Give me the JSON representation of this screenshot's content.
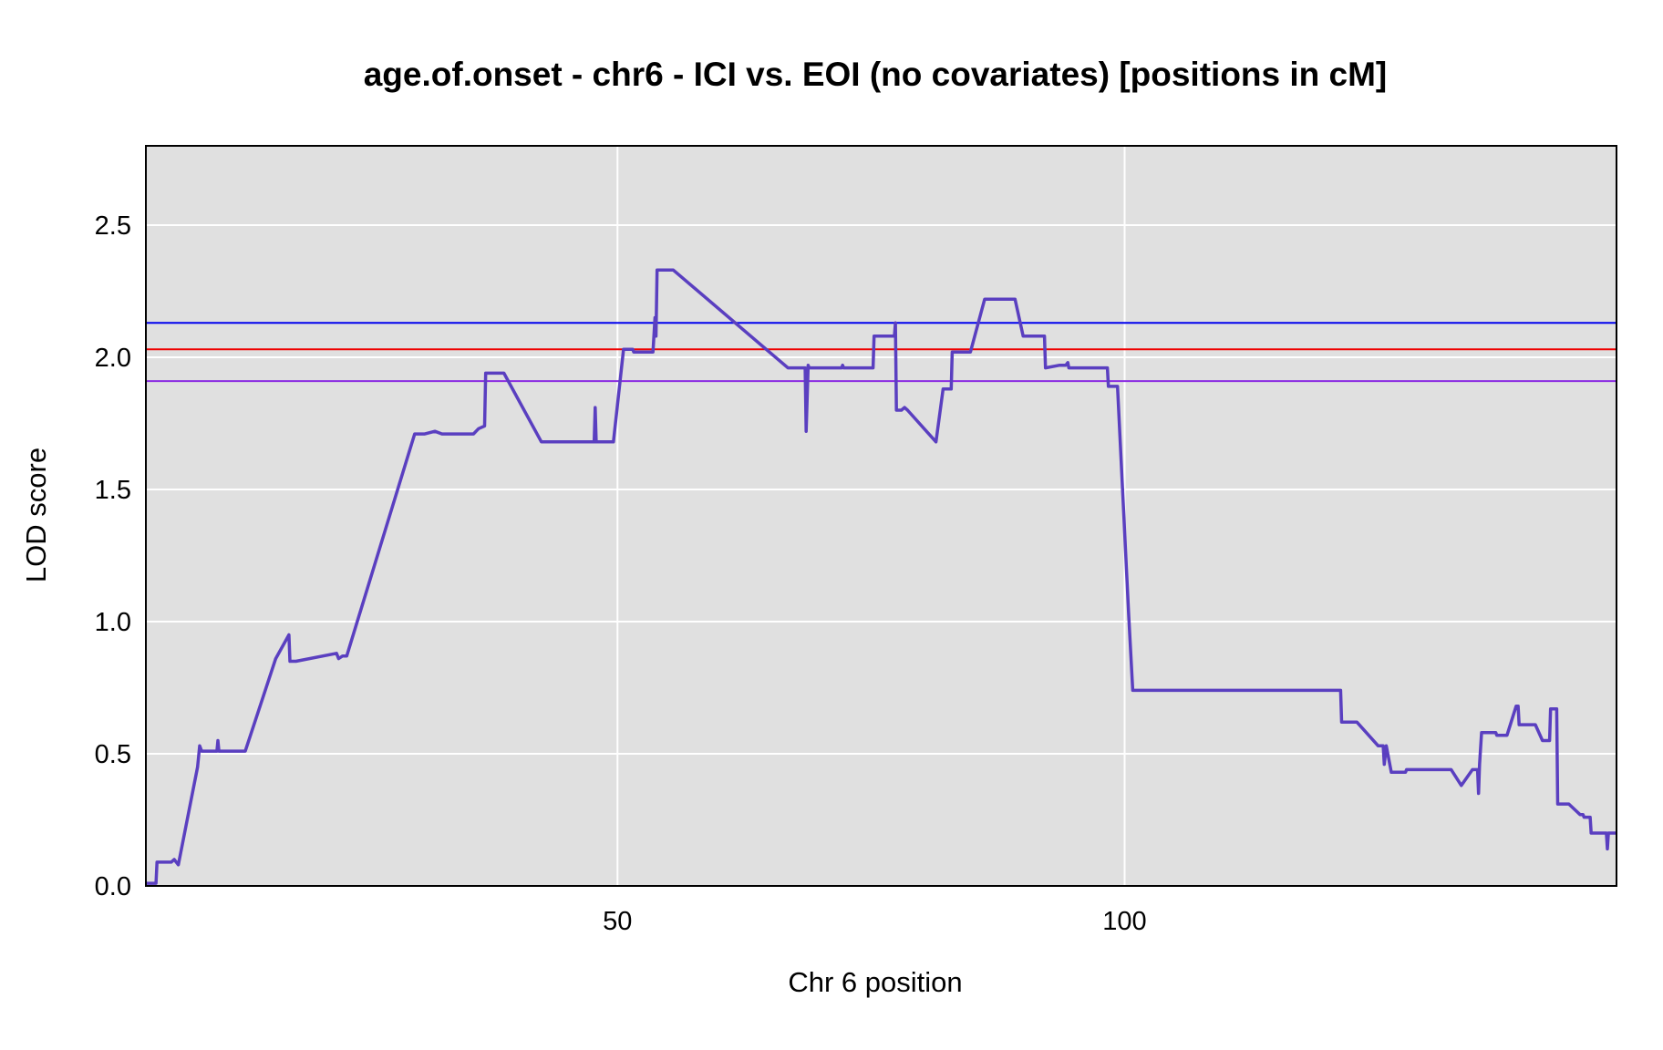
{
  "chart_data": {
    "type": "line",
    "title": "age.of.onset - chr6 - ICI vs. EOI (no covariates) [positions in cM]",
    "xlabel": "Chr 6 position",
    "ylabel": "LOD score",
    "xlim": [
      3.5,
      148.5
    ],
    "ylim": [
      0,
      2.8
    ],
    "x_ticks": [
      50,
      100
    ],
    "y_ticks": [
      0.0,
      0.5,
      1.0,
      1.5,
      2.0,
      2.5
    ],
    "x_tick_labels": [
      "50",
      "100"
    ],
    "y_tick_labels": [
      "0.0",
      "0.5",
      "1.0",
      "1.5",
      "2.0",
      "2.5"
    ],
    "grid": true,
    "background": "#e0e0e0",
    "thresholds": [
      {
        "y": 2.13,
        "color": "#0000ee"
      },
      {
        "y": 2.03,
        "color": "#ee0000"
      },
      {
        "y": 1.91,
        "color": "#8a2be2"
      }
    ],
    "series": [
      {
        "color": "#5a3fc0",
        "points": [
          [
            3.5,
            0.01
          ],
          [
            4.5,
            0.01
          ],
          [
            4.6,
            0.09
          ],
          [
            6.0,
            0.09
          ],
          [
            6.3,
            0.1
          ],
          [
            6.7,
            0.08
          ],
          [
            8.6,
            0.45
          ],
          [
            8.8,
            0.53
          ],
          [
            9.0,
            0.51
          ],
          [
            10.5,
            0.51
          ],
          [
            10.6,
            0.55
          ],
          [
            10.7,
            0.51
          ],
          [
            13.3,
            0.51
          ],
          [
            16.3,
            0.86
          ],
          [
            17.6,
            0.95
          ],
          [
            17.7,
            0.85
          ],
          [
            18.3,
            0.85
          ],
          [
            22.3,
            0.88
          ],
          [
            22.5,
            0.86
          ],
          [
            22.9,
            0.87
          ],
          [
            23.3,
            0.87
          ],
          [
            30.0,
            1.71
          ],
          [
            31.0,
            1.71
          ],
          [
            32.0,
            1.72
          ],
          [
            32.7,
            1.71
          ],
          [
            35.8,
            1.71
          ],
          [
            36.3,
            1.73
          ],
          [
            36.9,
            1.74
          ],
          [
            37.0,
            1.94
          ],
          [
            38.8,
            1.94
          ],
          [
            42.5,
            1.68
          ],
          [
            47.7,
            1.68
          ],
          [
            47.8,
            1.81
          ],
          [
            47.9,
            1.68
          ],
          [
            49.6,
            1.68
          ],
          [
            50.6,
            2.03
          ],
          [
            51.5,
            2.03
          ],
          [
            51.6,
            2.02
          ],
          [
            53.5,
            2.02
          ],
          [
            53.7,
            2.15
          ],
          [
            53.8,
            2.08
          ],
          [
            53.9,
            2.33
          ],
          [
            55.5,
            2.33
          ],
          [
            66.8,
            1.96
          ],
          [
            68.5,
            1.96
          ],
          [
            68.6,
            1.72
          ],
          [
            68.8,
            1.97
          ],
          [
            68.9,
            1.96
          ],
          [
            72.1,
            1.96
          ],
          [
            72.2,
            1.97
          ],
          [
            72.3,
            1.96
          ],
          [
            75.2,
            1.96
          ],
          [
            75.3,
            2.08
          ],
          [
            77.3,
            2.08
          ],
          [
            77.4,
            2.13
          ],
          [
            77.5,
            1.8
          ],
          [
            78.0,
            1.8
          ],
          [
            78.3,
            1.81
          ],
          [
            78.6,
            1.8
          ],
          [
            81.4,
            1.68
          ],
          [
            82.1,
            1.88
          ],
          [
            82.9,
            1.88
          ],
          [
            83.0,
            2.02
          ],
          [
            84.8,
            2.02
          ],
          [
            86.2,
            2.22
          ],
          [
            89.2,
            2.22
          ],
          [
            90.0,
            2.08
          ],
          [
            92.1,
            2.08
          ],
          [
            92.2,
            1.96
          ],
          [
            93.6,
            1.97
          ],
          [
            94.2,
            1.97
          ],
          [
            94.4,
            1.98
          ],
          [
            94.5,
            1.96
          ],
          [
            98.3,
            1.96
          ],
          [
            98.4,
            1.89
          ],
          [
            99.3,
            1.89
          ],
          [
            100.4,
            1.03
          ],
          [
            100.8,
            0.74
          ],
          [
            121.3,
            0.74
          ],
          [
            121.4,
            0.62
          ],
          [
            122.9,
            0.62
          ],
          [
            125.0,
            0.53
          ],
          [
            125.5,
            0.53
          ],
          [
            125.6,
            0.46
          ],
          [
            125.8,
            0.53
          ],
          [
            126.3,
            0.43
          ],
          [
            127.7,
            0.43
          ],
          [
            127.8,
            0.44
          ],
          [
            132.2,
            0.44
          ],
          [
            133.2,
            0.38
          ],
          [
            134.3,
            0.44
          ],
          [
            134.8,
            0.44
          ],
          [
            134.9,
            0.35
          ],
          [
            135.0,
            0.46
          ],
          [
            135.2,
            0.58
          ],
          [
            136.6,
            0.58
          ],
          [
            136.7,
            0.57
          ],
          [
            137.7,
            0.57
          ],
          [
            138.6,
            0.68
          ],
          [
            138.8,
            0.68
          ],
          [
            138.9,
            0.61
          ],
          [
            140.5,
            0.61
          ],
          [
            141.2,
            0.55
          ],
          [
            141.9,
            0.55
          ],
          [
            142.0,
            0.67
          ],
          [
            142.6,
            0.67
          ],
          [
            142.7,
            0.31
          ],
          [
            143.8,
            0.31
          ],
          [
            144.9,
            0.27
          ],
          [
            145.2,
            0.27
          ],
          [
            145.3,
            0.26
          ],
          [
            145.9,
            0.26
          ],
          [
            146.0,
            0.2
          ],
          [
            147.5,
            0.2
          ],
          [
            147.6,
            0.14
          ],
          [
            147.7,
            0.2
          ],
          [
            148.5,
            0.2
          ]
        ]
      }
    ]
  }
}
